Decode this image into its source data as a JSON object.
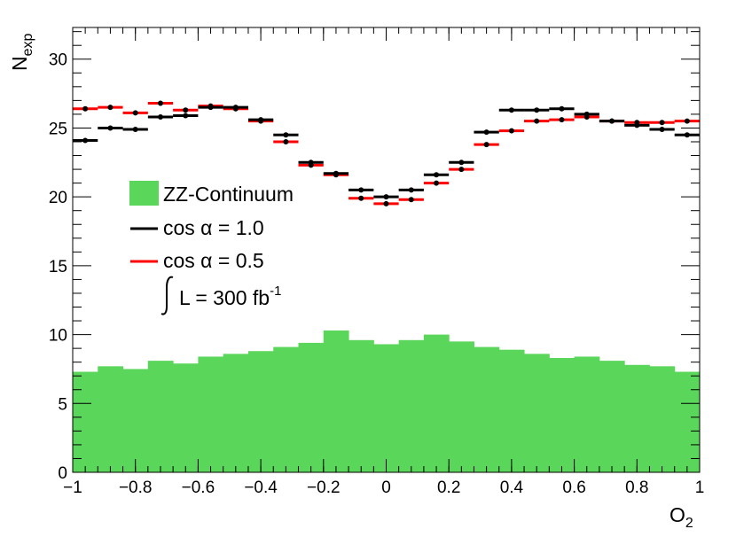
{
  "chart_data": {
    "type": "bar",
    "xlabel": "O",
    "xlabel_sub": "2",
    "ylabel": "N",
    "ylabel_sub": "exp",
    "xlim": [
      -1,
      1
    ],
    "ylim": [
      0,
      32.3
    ],
    "x_ticks": [
      "−1",
      "−0.8",
      "−0.6",
      "−0.4",
      "−0.2",
      "0",
      "0.2",
      "0.4",
      "0.6",
      "0.8",
      "1"
    ],
    "x_tick_values": [
      -1,
      -0.8,
      -0.6,
      -0.4,
      -0.2,
      0,
      0.2,
      0.4,
      0.6,
      0.8,
      1
    ],
    "y_ticks": [
      "0",
      "5",
      "10",
      "15",
      "20",
      "25",
      "30"
    ],
    "y_tick_values": [
      0,
      5,
      10,
      15,
      20,
      25,
      30
    ],
    "bin_edges": [
      -1,
      -0.92,
      -0.84,
      -0.76,
      -0.68,
      -0.6,
      -0.52,
      -0.44,
      -0.36,
      -0.28,
      -0.2,
      -0.12,
      -0.04,
      0.04,
      0.12,
      0.2,
      0.28,
      0.36,
      0.44,
      0.52,
      0.6,
      0.68,
      0.76,
      0.84,
      0.92,
      1
    ],
    "series": [
      {
        "name": "ZZ-Continuum",
        "style": "filled-histogram",
        "color": "#5ad65a",
        "values": [
          7.3,
          7.7,
          7.5,
          8.1,
          7.9,
          8.4,
          8.6,
          8.8,
          9.1,
          9.4,
          10.3,
          9.6,
          9.3,
          9.6,
          10.0,
          9.5,
          9.1,
          8.9,
          8.6,
          8.3,
          8.4,
          8.1,
          7.8,
          7.7,
          7.3
        ]
      },
      {
        "name": "cos α  = 1.0",
        "style": "marker-with-bin-width",
        "color": "#000000",
        "values": [
          24.1,
          25.0,
          24.9,
          25.8,
          25.9,
          26.5,
          26.5,
          25.6,
          24.5,
          22.5,
          21.7,
          20.5,
          20.0,
          20.5,
          21.6,
          22.5,
          24.7,
          26.3,
          26.3,
          26.4,
          26.0,
          25.5,
          25.2,
          24.9,
          24.5
        ]
      },
      {
        "name": "cos α  = 0.5",
        "style": "marker-with-bin-width",
        "color": "#ff0000",
        "values": [
          26.4,
          26.5,
          26.1,
          26.8,
          26.3,
          26.6,
          26.4,
          25.5,
          24.0,
          22.3,
          21.6,
          19.9,
          19.5,
          19.8,
          21.0,
          22.0,
          23.8,
          24.8,
          25.5,
          25.6,
          25.8,
          25.5,
          25.4,
          25.4,
          25.5
        ]
      }
    ],
    "legend": {
      "placement": "left-middle",
      "entries": [
        "ZZ-Continuum",
        "cos α  = 1.0",
        "cos α  = 0.5"
      ],
      "lumi_label": "L = 300 fb",
      "lumi_exponent": "-1"
    },
    "grid": false
  }
}
